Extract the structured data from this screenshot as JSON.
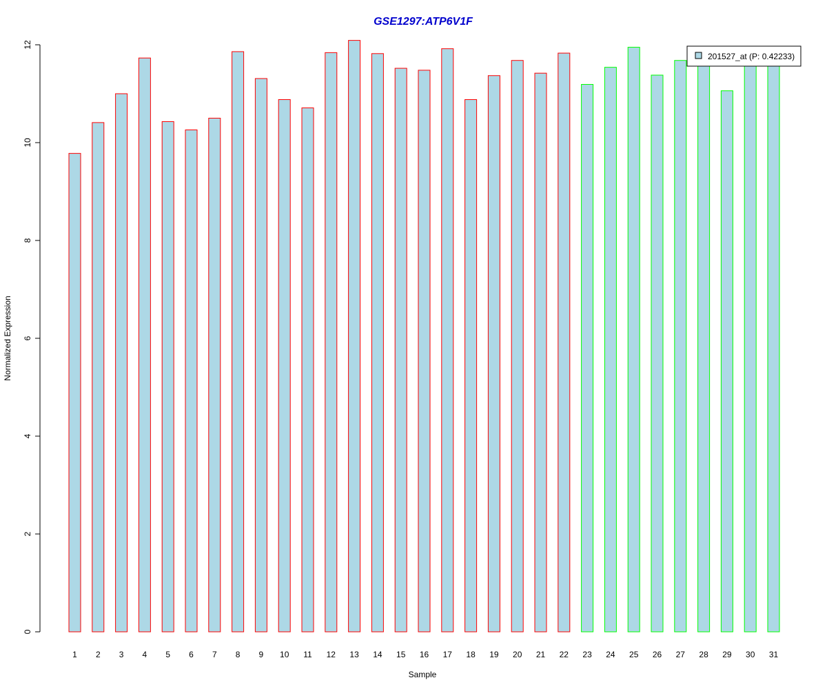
{
  "chart_data": {
    "type": "bar",
    "title": "GSE1297:ATP6V1F",
    "xlabel": "Sample",
    "ylabel": "Normalized Expression",
    "ylim": [
      0,
      12
    ],
    "yticks": [
      "0",
      "2",
      "4",
      "6",
      "8",
      "10",
      "12"
    ],
    "categories": [
      "1",
      "2",
      "3",
      "4",
      "5",
      "6",
      "7",
      "8",
      "9",
      "10",
      "11",
      "12",
      "13",
      "14",
      "15",
      "16",
      "17",
      "18",
      "19",
      "20",
      "21",
      "22",
      "23",
      "24",
      "25",
      "26",
      "27",
      "28",
      "29",
      "30",
      "31"
    ],
    "values": [
      9.78,
      10.41,
      11.0,
      11.73,
      10.43,
      10.26,
      10.5,
      11.86,
      11.31,
      10.88,
      10.71,
      11.84,
      12.09,
      11.82,
      11.52,
      11.48,
      11.92,
      10.88,
      11.37,
      11.68,
      11.42,
      11.83,
      11.19,
      11.54,
      11.95,
      11.38,
      11.68,
      11.7,
      11.06,
      11.7,
      11.7
    ],
    "groups": [
      "red",
      "red",
      "red",
      "red",
      "red",
      "red",
      "red",
      "red",
      "red",
      "red",
      "red",
      "red",
      "red",
      "red",
      "red",
      "red",
      "red",
      "red",
      "red",
      "red",
      "red",
      "red",
      "green",
      "green",
      "green",
      "green",
      "green",
      "green",
      "green",
      "green",
      "green"
    ],
    "grid": false,
    "legend": {
      "position": "top-right",
      "label": "201527_at (P: 0.42233)"
    },
    "colors": {
      "bar_fill": "#add8e6",
      "border_group_red": "#ff0000",
      "border_group_green": "#00ff00",
      "title": "#0000cd",
      "axis": "#000000"
    }
  }
}
